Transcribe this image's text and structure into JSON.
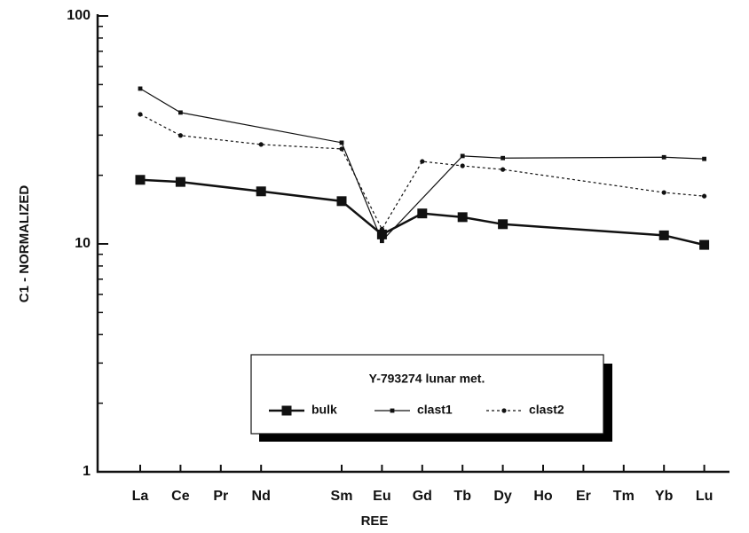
{
  "chart_data": {
    "type": "line",
    "xlabel": "REE",
    "ylabel": "C1 - NORMALIZED",
    "categories": [
      "La",
      "Ce",
      "Pr",
      "Nd",
      null,
      "Sm",
      "Eu",
      "Gd",
      "Tb",
      "Dy",
      "Ho",
      "Er",
      "Tm",
      "Yb",
      "Lu"
    ],
    "ylim": [
      1,
      100
    ],
    "yticks": [
      1,
      10,
      100
    ],
    "yticks_minor": [
      2,
      3,
      4,
      5,
      6,
      7,
      8,
      9,
      20,
      30,
      40,
      50,
      60,
      70,
      80,
      90
    ],
    "log_y": true,
    "legend_title": "Y-793274 lunar met.",
    "series": [
      {
        "name": "bulk",
        "color": "#111111",
        "line": "solid",
        "weight": "heavy",
        "marker": "square",
        "x": [
          "La",
          "Ce",
          "Nd",
          "Sm",
          "Eu",
          "Gd",
          "Tb",
          "Dy",
          "Yb",
          "Lu"
        ],
        "values": [
          19.1,
          18.7,
          17.0,
          15.4,
          11.0,
          13.6,
          13.1,
          12.2,
          10.9,
          9.9
        ]
      },
      {
        "name": "clast1",
        "color": "#111111",
        "line": "solid",
        "weight": "light",
        "marker": "square",
        "x": [
          "La",
          "Ce",
          "Sm",
          "Eu",
          "Tb",
          "Dy",
          "Yb",
          "Lu"
        ],
        "values": [
          48,
          37.7,
          27.8,
          10.3,
          24.3,
          23.8,
          24.0,
          23.6
        ]
      },
      {
        "name": "clast2",
        "color": "#111111",
        "line": "dotted",
        "weight": "light",
        "marker": "circle",
        "x": [
          "La",
          "Ce",
          "Nd",
          "Sm",
          "Eu",
          "Gd",
          "Tb",
          "Dy",
          "Yb",
          "Lu"
        ],
        "values": [
          37,
          29.9,
          27.3,
          26.1,
          11.6,
          23.0,
          22.0,
          21.2,
          16.8,
          16.2
        ]
      }
    ]
  }
}
